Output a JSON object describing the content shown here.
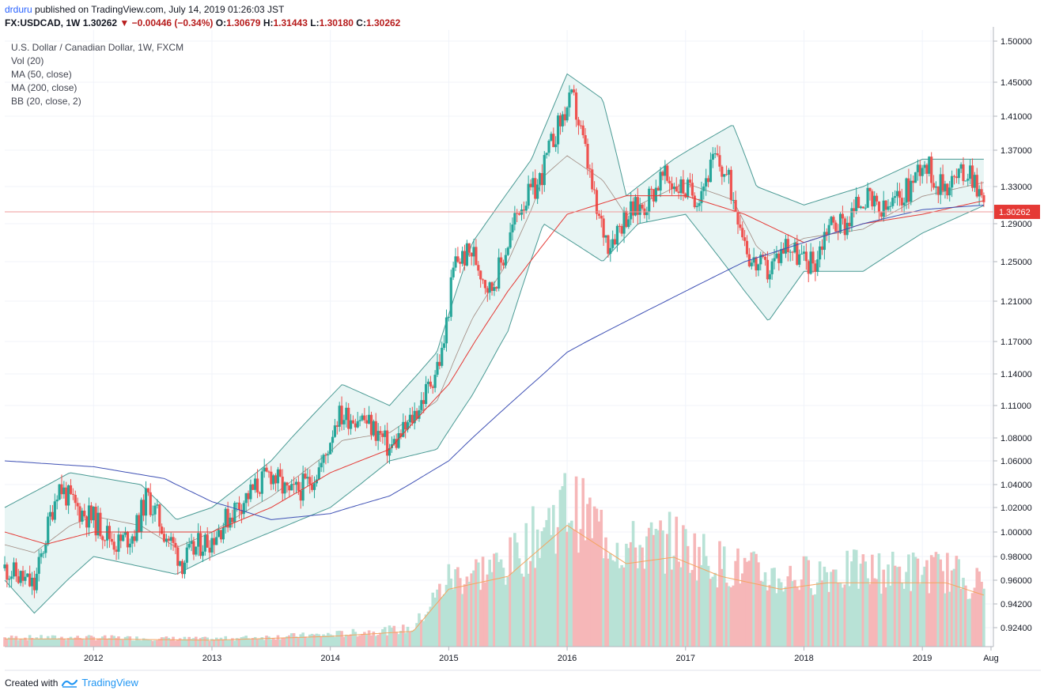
{
  "header": {
    "user": "drduru",
    "published": " published on TradingView.com, July 14, 2019 01:26:03 JST"
  },
  "ohlc": {
    "symbol": "FX:USDCAD,",
    "interval": "1W",
    "last": "1.30262",
    "change_arrow": "▼",
    "change": "−0.00446 (−0.34%)",
    "o_label": "O:",
    "o": "1.30679",
    "h_label": "H:",
    "h": "1.31443",
    "l_label": "L:",
    "l": "1.30180",
    "c_label": "C:",
    "c": "1.30262"
  },
  "legend": {
    "title": "U.S. Dollar / Canadian Dollar, 1W, FXCM",
    "vol": "Vol (20)",
    "ma50": "MA (50, close)",
    "ma200": "MA (200, close)",
    "bb": "BB (20, close, 2)"
  },
  "footer": {
    "created": "Created with",
    "brand": "TradingView"
  },
  "colors": {
    "up": "#26a69a",
    "down": "#ef5350",
    "ma50": "#e53935",
    "ma200": "#3f51b5",
    "bb_fill": "#e8f5f4",
    "bb_line": "#4a9a94",
    "vol_up": "#b8e2d6",
    "vol_down": "#f6b7b8",
    "price_tag": "#e53935",
    "grid": "#f0f3fa"
  },
  "chart_data": {
    "type": "candlestick",
    "interval": "1W",
    "current_price": 1.30262,
    "y_axis": {
      "scale": "log",
      "ticks": [
        1.5,
        1.45,
        1.41,
        1.37,
        1.33,
        1.29,
        1.25,
        1.21,
        1.17,
        1.14,
        1.11,
        1.08,
        1.06,
        1.04,
        1.02,
        1.0,
        0.98,
        0.96,
        0.942,
        0.924
      ],
      "tick_labels": [
        "1.50000",
        "1.45000",
        "1.41000",
        "1.37000",
        "1.33000",
        "1.29000",
        "1.25000",
        "1.21000",
        "1.17000",
        "1.14000",
        "1.11000",
        "1.08000",
        "1.06000",
        "1.04000",
        "1.02000",
        "1.00000",
        "0.98000",
        "0.96000",
        "0.94200",
        "0.92400"
      ],
      "current_label": "1.30262"
    },
    "x_axis": {
      "ticks": [
        2012,
        2013,
        2014,
        2015,
        2016,
        2017,
        2018,
        2019,
        2019.58
      ],
      "tick_labels": [
        "2012",
        "2013",
        "2014",
        "2015",
        "2016",
        "2017",
        "2018",
        "2019",
        "Aug"
      ]
    },
    "price_close_weekly_approx": [
      [
        2011.25,
        0.97
      ],
      [
        2011.5,
        0.955
      ],
      [
        2011.7,
        1.04
      ],
      [
        2011.85,
        1.02
      ],
      [
        2012.0,
        1.01
      ],
      [
        2012.2,
        0.99
      ],
      [
        2012.35,
        1.0
      ],
      [
        2012.45,
        1.03
      ],
      [
        2012.6,
        1.0
      ],
      [
        2012.75,
        0.975
      ],
      [
        2012.9,
        0.99
      ],
      [
        2013.0,
        0.995
      ],
      [
        2013.2,
        1.02
      ],
      [
        2013.35,
        1.035
      ],
      [
        2013.5,
        1.05
      ],
      [
        2013.65,
        1.03
      ],
      [
        2013.8,
        1.04
      ],
      [
        2013.95,
        1.06
      ],
      [
        2014.05,
        1.1
      ],
      [
        2014.25,
        1.1
      ],
      [
        2014.4,
        1.085
      ],
      [
        2014.5,
        1.07
      ],
      [
        2014.65,
        1.09
      ],
      [
        2014.8,
        1.12
      ],
      [
        2014.95,
        1.16
      ],
      [
        2015.05,
        1.25
      ],
      [
        2015.2,
        1.26
      ],
      [
        2015.35,
        1.22
      ],
      [
        2015.45,
        1.25
      ],
      [
        2015.6,
        1.31
      ],
      [
        2015.75,
        1.33
      ],
      [
        2015.9,
        1.39
      ],
      [
        2016.0,
        1.42
      ],
      [
        2016.05,
        1.43
      ],
      [
        2016.15,
        1.37
      ],
      [
        2016.25,
        1.3
      ],
      [
        2016.35,
        1.27
      ],
      [
        2016.5,
        1.3
      ],
      [
        2016.65,
        1.31
      ],
      [
        2016.8,
        1.34
      ],
      [
        2016.95,
        1.33
      ],
      [
        2017.1,
        1.32
      ],
      [
        2017.25,
        1.36
      ],
      [
        2017.35,
        1.34
      ],
      [
        2017.45,
        1.3
      ],
      [
        2017.55,
        1.25
      ],
      [
        2017.7,
        1.24
      ],
      [
        2017.85,
        1.27
      ],
      [
        2018.0,
        1.25
      ],
      [
        2018.1,
        1.25
      ],
      [
        2018.2,
        1.29
      ],
      [
        2018.35,
        1.29
      ],
      [
        2018.5,
        1.32
      ],
      [
        2018.65,
        1.3
      ],
      [
        2018.75,
        1.31
      ],
      [
        2018.9,
        1.33
      ],
      [
        2019.0,
        1.36
      ],
      [
        2019.15,
        1.33
      ],
      [
        2019.3,
        1.34
      ],
      [
        2019.4,
        1.35
      ],
      [
        2019.47,
        1.33
      ],
      [
        2019.53,
        1.30262
      ]
    ],
    "ma50_approx": [
      [
        2011.25,
        1.0
      ],
      [
        2011.6,
        0.99
      ],
      [
        2012.0,
        1.0
      ],
      [
        2012.6,
        1.0
      ],
      [
        2013.0,
        1.0
      ],
      [
        2013.5,
        1.02
      ],
      [
        2014.0,
        1.05
      ],
      [
        2014.5,
        1.07
      ],
      [
        2015.0,
        1.13
      ],
      [
        2015.5,
        1.22
      ],
      [
        2016.0,
        1.3
      ],
      [
        2016.5,
        1.32
      ],
      [
        2017.0,
        1.32
      ],
      [
        2017.5,
        1.3
      ],
      [
        2018.0,
        1.27
      ],
      [
        2018.5,
        1.29
      ],
      [
        2019.0,
        1.3
      ],
      [
        2019.53,
        1.315
      ]
    ],
    "ma200_approx": [
      [
        2011.25,
        1.06
      ],
      [
        2012.0,
        1.055
      ],
      [
        2012.6,
        1.045
      ],
      [
        2013.0,
        1.025
      ],
      [
        2013.5,
        1.01
      ],
      [
        2014.0,
        1.015
      ],
      [
        2014.5,
        1.03
      ],
      [
        2015.0,
        1.06
      ],
      [
        2015.5,
        1.11
      ],
      [
        2016.0,
        1.16
      ],
      [
        2016.5,
        1.19
      ],
      [
        2017.0,
        1.22
      ],
      [
        2017.5,
        1.25
      ],
      [
        2018.0,
        1.27
      ],
      [
        2018.5,
        1.29
      ],
      [
        2019.0,
        1.305
      ],
      [
        2019.53,
        1.31
      ]
    ],
    "bollinger_upper_approx": [
      [
        2011.25,
        1.02
      ],
      [
        2011.8,
        1.05
      ],
      [
        2012.4,
        1.04
      ],
      [
        2012.7,
        1.01
      ],
      [
        2013.0,
        1.02
      ],
      [
        2013.5,
        1.06
      ],
      [
        2014.1,
        1.13
      ],
      [
        2014.5,
        1.11
      ],
      [
        2014.9,
        1.16
      ],
      [
        2015.2,
        1.27
      ],
      [
        2015.7,
        1.36
      ],
      [
        2016.0,
        1.46
      ],
      [
        2016.3,
        1.43
      ],
      [
        2016.5,
        1.32
      ],
      [
        2016.9,
        1.36
      ],
      [
        2017.4,
        1.4
      ],
      [
        2017.6,
        1.33
      ],
      [
        2018.0,
        1.31
      ],
      [
        2018.5,
        1.33
      ],
      [
        2019.0,
        1.36
      ],
      [
        2019.53,
        1.36
      ]
    ],
    "bollinger_lower_approx": [
      [
        2011.25,
        0.96
      ],
      [
        2011.5,
        0.935
      ],
      [
        2012.0,
        0.98
      ],
      [
        2012.7,
        0.965
      ],
      [
        2013.0,
        0.98
      ],
      [
        2013.5,
        1.0
      ],
      [
        2014.0,
        1.02
      ],
      [
        2014.5,
        1.06
      ],
      [
        2014.9,
        1.07
      ],
      [
        2015.2,
        1.12
      ],
      [
        2015.5,
        1.18
      ],
      [
        2015.8,
        1.29
      ],
      [
        2016.3,
        1.25
      ],
      [
        2016.6,
        1.29
      ],
      [
        2017.0,
        1.3
      ],
      [
        2017.5,
        1.22
      ],
      [
        2017.7,
        1.19
      ],
      [
        2018.0,
        1.24
      ],
      [
        2018.5,
        1.24
      ],
      [
        2019.0,
        1.28
      ],
      [
        2019.53,
        1.31
      ]
    ],
    "volume_bars_relative_approx": [
      [
        2011.25,
        0.06
      ],
      [
        2012.0,
        0.06
      ],
      [
        2013.0,
        0.05
      ],
      [
        2014.0,
        0.08
      ],
      [
        2014.7,
        0.12
      ],
      [
        2015.0,
        0.45
      ],
      [
        2015.5,
        0.55
      ],
      [
        2016.0,
        0.95
      ],
      [
        2016.5,
        0.65
      ],
      [
        2016.9,
        0.7
      ],
      [
        2017.3,
        0.55
      ],
      [
        2017.8,
        0.45
      ],
      [
        2018.2,
        0.5
      ],
      [
        2018.7,
        0.5
      ],
      [
        2019.2,
        0.5
      ],
      [
        2019.53,
        0.4
      ]
    ]
  }
}
